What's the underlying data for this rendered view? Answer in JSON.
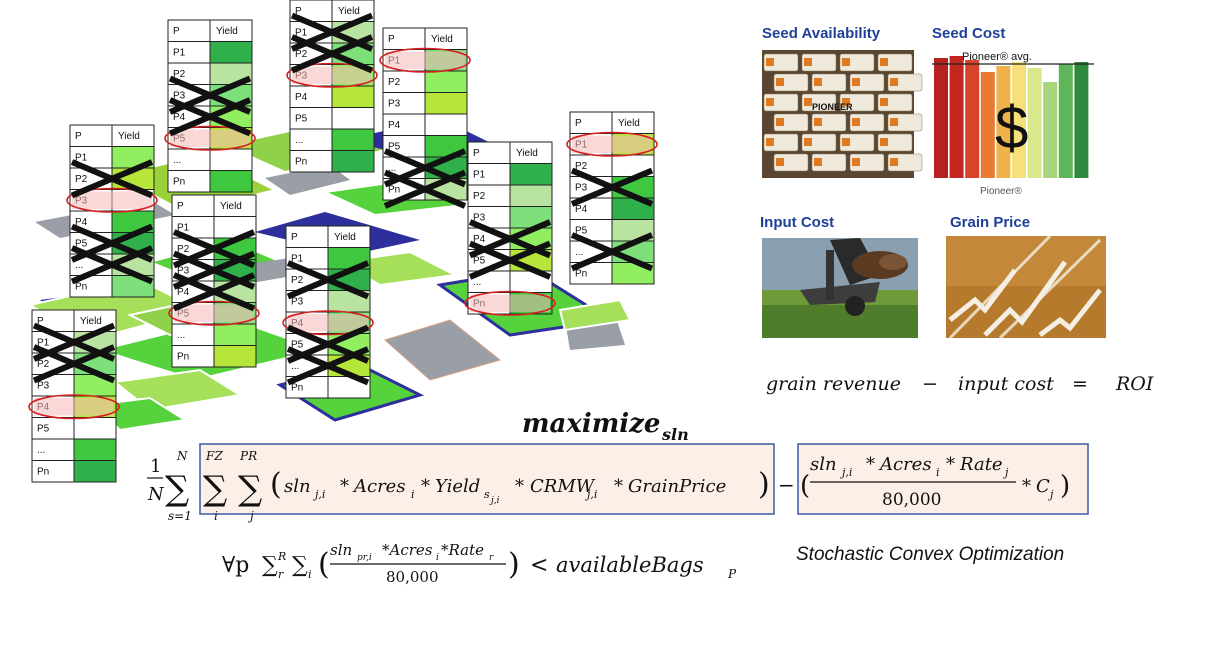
{
  "tables": [
    {
      "header": [
        "P",
        "Yield"
      ],
      "rows": [
        "P1",
        "P2",
        "P3",
        "P4",
        "P5",
        "...",
        "Pn"
      ]
    },
    {
      "header": [
        "P",
        "Yield"
      ],
      "rows": [
        "P1",
        "P2",
        "P3",
        "P4",
        "P5",
        "...",
        "Pn"
      ]
    },
    {
      "header": [
        "P",
        "Yield"
      ],
      "rows": [
        "P1",
        "P2",
        "P3",
        "P4",
        "P5",
        "...",
        "Pn"
      ]
    },
    {
      "header": [
        "P",
        "Yield"
      ],
      "rows": [
        "P1",
        "P2",
        "P3",
        "P4",
        "P5",
        "...",
        "Pn"
      ]
    },
    {
      "header": [
        "P",
        "Yield"
      ],
      "rows": [
        "P1",
        "P2",
        "P3",
        "P4",
        "P5",
        "...",
        "Pn"
      ]
    },
    {
      "header": [
        "P",
        "Yield"
      ],
      "rows": [
        "P1",
        "P2",
        "P3",
        "P4",
        "P5",
        "...",
        "Pn"
      ]
    },
    {
      "header": [
        "P",
        "Yield"
      ],
      "rows": [
        "P1",
        "P2",
        "P3",
        "P4",
        "P5",
        "...",
        "Pn"
      ]
    },
    {
      "header": [
        "P",
        "Yield"
      ],
      "rows": [
        "P1",
        "P2",
        "P3",
        "P4",
        "P5",
        "...",
        "Pn"
      ]
    },
    {
      "header": [
        "P",
        "Yield"
      ],
      "rows": [
        "P1",
        "P2",
        "P3",
        "P4",
        "P5",
        "...",
        "Pn"
      ]
    }
  ],
  "factors": {
    "seed_availability": "Seed Availability",
    "seed_cost": "Seed Cost",
    "input_cost": "Input Cost",
    "grain_price": "Grain Price",
    "seed_bag_brand": "PIONEER",
    "chart_top": "Pioneer® avg.",
    "chart_bottom": "Pioneer®",
    "dollar": "$"
  },
  "roi": {
    "grain_revenue": "grain revenue",
    "minus": "−",
    "input_cost": "input cost",
    "equals": "=",
    "roi": "ROI"
  },
  "objective": {
    "maximize": "maximize",
    "maximize_sub": "sln",
    "frac_num": "1",
    "frac_den": "N",
    "sum_n_top": "N",
    "sum_n_bottom": "s=1",
    "sum_fz_top": "FZ",
    "sum_fz_bottom": "i",
    "sum_pr_top": "PR",
    "sum_pr_bottom": "j",
    "revenue_term": "sln",
    "revenue_sub": "j,i",
    "acres": "Acres",
    "acres_sub": "i",
    "yield": "Yield",
    "yield_sub": "s",
    "yield_subsub": "j,i",
    "crmw": "CRMW",
    "crmw_sub": "j,i",
    "grain_price": "GrainPrice",
    "cost_num_sln": "sln",
    "cost_num_sln_sub": "j,i",
    "cost_num_acres": "Acres",
    "cost_num_acres_sub": "i",
    "cost_num_rate": "Rate",
    "cost_num_rate_sub": "j",
    "cost_den": "80,000",
    "cost_c": "C",
    "cost_c_sub": "j",
    "times": "*",
    "minus": "−"
  },
  "constraint": {
    "forall": "∀p",
    "sum_r_top": "R",
    "sum_r_sub": "r",
    "sum_i_sub": "i",
    "num": "sln",
    "num_sub": "pr,i",
    "num_rest": "*Acres",
    "num_rest_sub": "i",
    "num_rate": "*Rate",
    "num_rate_sub": "r",
    "den": "80,000",
    "lt": "<",
    "bags": "availableBags",
    "bags_sub": "P"
  },
  "method": "Stochastic Convex Optimization"
}
